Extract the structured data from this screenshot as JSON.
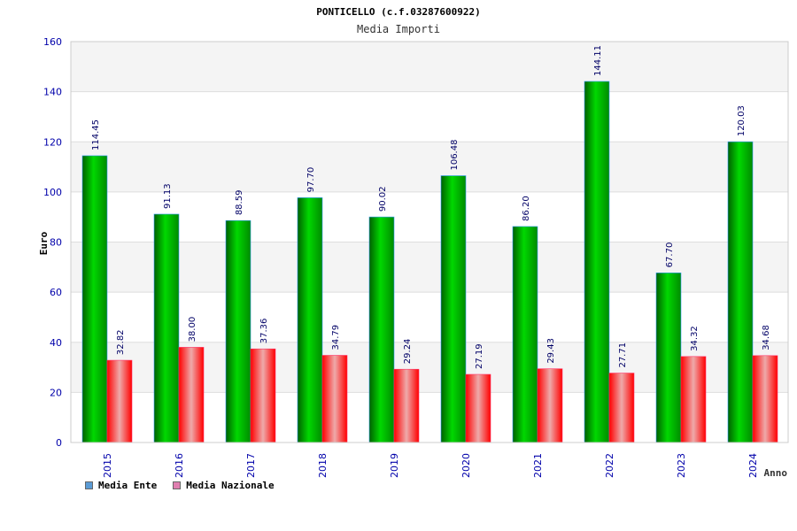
{
  "chart_data": {
    "type": "bar",
    "title": "PONTICELLO (c.f.03287600922)",
    "subtitle": "Media Importi",
    "xlabel": "Anno",
    "ylabel": "Euro",
    "ylim": [
      0,
      160
    ],
    "yticks": [
      0,
      20,
      40,
      60,
      80,
      100,
      120,
      140,
      160
    ],
    "grid": true,
    "legend_position": "bottom-left",
    "categories": [
      "2015",
      "2016",
      "2017",
      "2018",
      "2019",
      "2020",
      "2021",
      "2022",
      "2023",
      "2024"
    ],
    "series": [
      {
        "name": "Media Ente",
        "color": "#00b000",
        "legend_color": "#5b9bd5",
        "values": [
          114.45,
          91.13,
          88.59,
          97.7,
          90.02,
          106.48,
          86.2,
          144.11,
          67.7,
          120.03
        ],
        "labels": [
          "114.45",
          "91.13",
          "88.59",
          "97.70",
          "90.02",
          "106.48",
          "86.20",
          "144.11",
          "67.70",
          "120.03"
        ]
      },
      {
        "name": "Media Nazionale",
        "color": "#ee0000",
        "legend_color": "#e07fb0",
        "values": [
          32.82,
          38.0,
          37.36,
          34.79,
          29.24,
          27.19,
          29.43,
          27.71,
          34.32,
          34.68
        ],
        "labels": [
          "32.82",
          "38.00",
          "37.36",
          "34.79",
          "29.24",
          "27.19",
          "29.43",
          "27.71",
          "34.32",
          "34.68"
        ]
      }
    ]
  }
}
